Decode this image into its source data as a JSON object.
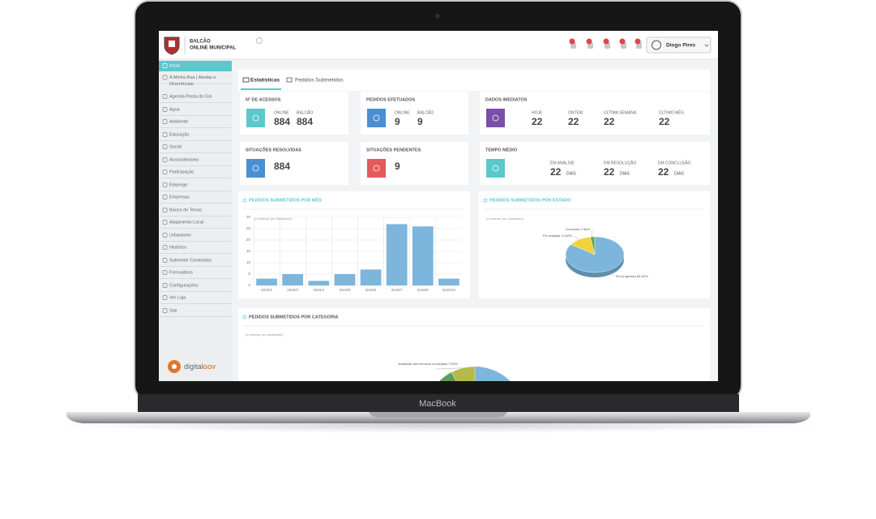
{
  "device": {
    "brand": "MacBook"
  },
  "header": {
    "title_line1": "BALCÃO",
    "title_line2": "ONLINE MUNICIPAL",
    "user": "Diogo Pires"
  },
  "sidebar": {
    "items": [
      "Início",
      "A Minha Rua | Alertas e",
      "Ocorrências",
      "Agenda Ponta do Sol",
      "Água",
      "Ambiente",
      "Educação",
      "Social",
      "Associativismo",
      "Participação",
      "Emprego",
      "Empresas",
      "Banco de Terras",
      "Alojamento Local",
      "Urbanismo",
      "Histórico",
      "Submeter Conteúdos",
      "Formulários",
      "Configurações",
      "Ver Loja",
      "Sair"
    ],
    "footer": "digital",
    "footer_bold": "GOV"
  },
  "tabs": [
    "Estatísticas",
    "Pedidos Submetidos"
  ],
  "cards": [
    {
      "title": "Nº DE ACESSOS",
      "color": "#5bc8cc",
      "stats": [
        {
          "label": "ONLINE",
          "value": 884
        },
        {
          "label": "BALCÃO",
          "value": 884
        }
      ]
    },
    {
      "title": "PEDIDOS EFETUADOS",
      "color": "#4a8fd4",
      "stats": [
        {
          "label": "ONLINE",
          "value": 9
        },
        {
          "label": "BALCÃO",
          "value": 9
        }
      ]
    },
    {
      "title": "DADOS IMEDIATOS",
      "color": "#7b4fa6",
      "stats": [
        {
          "label": "HOJE",
          "value": 22
        },
        {
          "label": "ONTEM",
          "value": 22
        },
        {
          "label": "ÚLTIMA SEMANA",
          "value": 22
        },
        {
          "label": "ÚLTIMO MÊS",
          "value": 22
        }
      ]
    },
    {
      "title": "SITUAÇÕES RESOLVIDAS",
      "color": "#4a8fd4",
      "stats": [
        {
          "value": 884
        }
      ]
    },
    {
      "title": "SITUAÇÕES PENDENTES",
      "color": "#e25a5a",
      "stats": [
        {
          "value": 9
        }
      ]
    },
    {
      "title": "TEMPO MÉDIO",
      "color": "#5bc8cc",
      "stats": [
        {
          "label": "EM ANÁLISE",
          "value": 22,
          "unit": "DIAS"
        },
        {
          "label": "EM RESOLUÇÃO",
          "value": 22,
          "unit": "DIAS"
        },
        {
          "label": "EM CONCLUSÃO",
          "value": 22,
          "unit": "DIAS"
        }
      ]
    }
  ],
  "charts": [
    {
      "type": "bar",
      "title": "PEDIDOS SUBMETIDOS POR MÊS",
      "subtitle": "(a ordenar por atualizado)",
      "categories": [
        "2015/2",
        "2015/3",
        "2015/4",
        "2015/5",
        "2015/6",
        "2015/7",
        "2015/9",
        "2015/10"
      ],
      "values": [
        3,
        5,
        2,
        5,
        7,
        27,
        26,
        3
      ],
      "color": "#7db5dc",
      "ylim": [
        0,
        30
      ],
      "yticks": [
        0,
        5,
        10,
        15,
        20,
        25,
        30
      ],
      "grid": true
    },
    {
      "type": "pie",
      "title": "PEDIDOS SUBMETIDOS POR ESTADO",
      "subtitle": "(a ordenar por atualizado)",
      "values": [
        2.56,
        12.82,
        84.62
      ],
      "value_labels": [
        "Concluído 2.56%",
        "Por analisar 12.82%",
        "Em progresso 84.62%"
      ],
      "colors": [
        "#6aa84f",
        "#f1d23c",
        "#7db5dc"
      ]
    },
    {
      "type": "pie",
      "title": "PEDIDOS SUBMETIDOS POR CATEGORIA",
      "subtitle": "(a ordenar por atualizado)",
      "values": [
        7.69
      ],
      "value_labels": [
        "Avaliação dos serviços municipais 7.69%"
      ],
      "colors": [
        "#b5b94a"
      ]
    }
  ]
}
